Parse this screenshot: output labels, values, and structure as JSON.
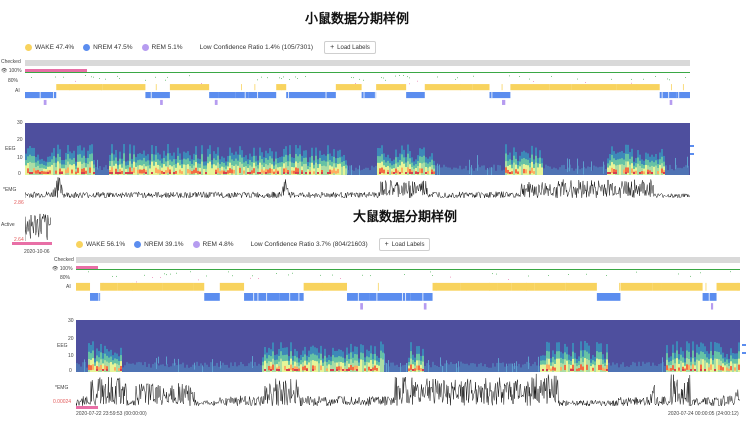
{
  "mouse": {
    "title": "小鼠数据分期样例",
    "legend": {
      "wake": "WAKE 47.4%",
      "nrem": "NREM 47.5%",
      "rem": "REM 5.1%",
      "low_conf": "Low Confidence Ratio 1.4% (105/7301)"
    },
    "load_labels": "Load Labels",
    "checked": "Checked",
    "pct100": "100%",
    "pct80": "80%",
    "ai": "AI",
    "eeg": "EEG",
    "emg": "*EMG",
    "y30": "30",
    "y20": "20",
    "y10": "10",
    "y0": "0",
    "active": "Active",
    "ymax": "2.86",
    "ymin": "2.64",
    "date": "2020-10-06"
  },
  "rat": {
    "title": "大鼠数据分期样例",
    "legend": {
      "wake": "WAKE 56.1%",
      "nrem": "NREM 39.1%",
      "rem": "REM 4.8%",
      "low_conf": "Low Confidence Ratio 3.7% (804/21603)"
    },
    "load_labels": "Load Labels",
    "checked": "Checked",
    "pct100": "100%",
    "pct80": "80%",
    "ai": "AI",
    "eeg": "EEG",
    "emg": "*EMG",
    "y30": "30",
    "y20": "20",
    "y10": "10",
    "y0": "0",
    "emg_val": "0.00024",
    "start_time": "2020-07-22 23:59:53 (00:00:00)",
    "end_time": "2020-07-24 00:00:05 (24:00:12)"
  },
  "colors": {
    "wake": "#f8d35e",
    "nrem": "#5b8def",
    "rem": "#b69cf0",
    "low": "#e86fa6",
    "conf": "#3aa845"
  },
  "icons": {
    "eye": "eye-icon",
    "plus": "plus-icon"
  }
}
